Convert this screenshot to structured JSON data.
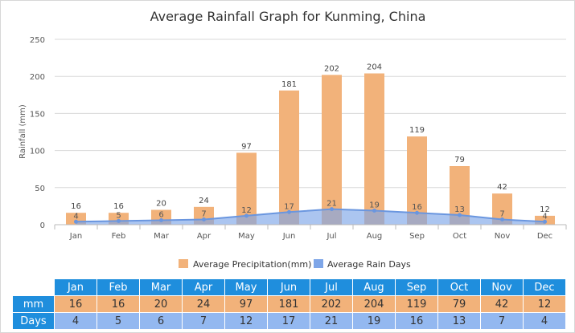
{
  "chart_data": {
    "type": "bar",
    "title": "Average Rainfall Graph for Kunming, China",
    "ylabel": "Rainfall (mm)",
    "xlabel": "",
    "ylim": [
      0,
      250
    ],
    "yticks": [
      0,
      50,
      100,
      150,
      200,
      250
    ],
    "grid": true,
    "legend_position": "bottom",
    "categories": [
      "Jan",
      "Feb",
      "Mar",
      "Apr",
      "May",
      "Jun",
      "Jul",
      "Aug",
      "Sep",
      "Oct",
      "Nov",
      "Dec"
    ],
    "series": [
      {
        "name": "Average Precipitation(mm)",
        "type": "bar",
        "color": "#f2b27a",
        "values": [
          16,
          16,
          20,
          24,
          97,
          181,
          202,
          204,
          119,
          79,
          42,
          12
        ]
      },
      {
        "name": "Average Rain Days",
        "type": "area",
        "color": "#7ea6e8",
        "values": [
          4,
          5,
          6,
          7,
          12,
          17,
          21,
          19,
          16,
          13,
          7,
          4
        ]
      }
    ]
  },
  "table": {
    "months": [
      "Jan",
      "Feb",
      "Mar",
      "Apr",
      "May",
      "Jun",
      "Jul",
      "Aug",
      "Sep",
      "Oct",
      "Nov",
      "Dec"
    ],
    "mm_label": "mm",
    "days_label": "Days",
    "mm": [
      16,
      16,
      20,
      24,
      97,
      181,
      202,
      204,
      119,
      79,
      42,
      12
    ],
    "days": [
      4,
      5,
      6,
      7,
      12,
      17,
      21,
      19,
      16,
      13,
      7,
      4
    ]
  }
}
